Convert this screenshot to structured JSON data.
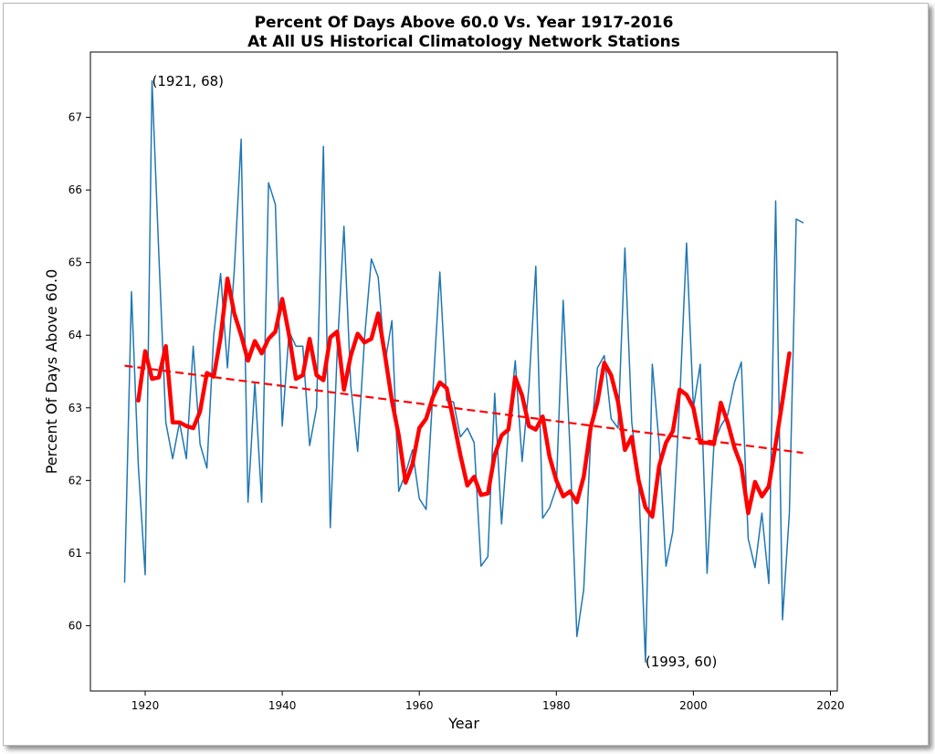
{
  "chart_data": {
    "type": "line",
    "title": "Percent Of Days Above 60.0 Vs. Year 1917-2016",
    "subtitle": "At All US Historical Climatology Network Stations",
    "xlabel": "Year",
    "ylabel": "Percent Of Days Above 60.0",
    "xlim": [
      1912,
      2021
    ],
    "ylim": [
      59.1,
      67.9
    ],
    "xticks": [
      1920,
      1940,
      1960,
      1980,
      2000,
      2020
    ],
    "yticks": [
      60,
      61,
      62,
      63,
      64,
      65,
      66,
      67
    ],
    "grid": false,
    "series": [
      {
        "color": "#1f77b4",
        "x": [
          1917,
          1918,
          1919,
          1920,
          1921,
          1922,
          1923,
          1924,
          1925,
          1926,
          1927,
          1928,
          1929,
          1930,
          1931,
          1932,
          1933,
          1934,
          1935,
          1936,
          1937,
          1938,
          1939,
          1940,
          1941,
          1942,
          1943,
          1944,
          1945,
          1946,
          1947,
          1948,
          1949,
          1950,
          1951,
          1952,
          1953,
          1954,
          1955,
          1956,
          1957,
          1958,
          1959,
          1960,
          1961,
          1962,
          1963,
          1964,
          1965,
          1966,
          1967,
          1968,
          1969,
          1970,
          1971,
          1972,
          1973,
          1974,
          1975,
          1976,
          1977,
          1978,
          1979,
          1980,
          1981,
          1982,
          1983,
          1984,
          1985,
          1986,
          1987,
          1988,
          1989,
          1990,
          1991,
          1992,
          1993,
          1994,
          1995,
          1996,
          1997,
          1998,
          1999,
          2000,
          2001,
          2002,
          2003,
          2004,
          2005,
          2006,
          2007,
          2008,
          2009,
          2010,
          2011,
          2012,
          2013,
          2014,
          2015,
          2016
        ],
        "y": [
          60.6,
          64.6,
          62.2,
          60.7,
          67.5,
          65.1,
          62.8,
          62.3,
          62.8,
          62.3,
          63.85,
          62.5,
          62.17,
          64.0,
          64.85,
          63.55,
          64.9,
          66.7,
          61.7,
          63.35,
          61.7,
          66.1,
          65.8,
          62.75,
          64.05,
          63.85,
          63.85,
          62.48,
          63.0,
          66.6,
          61.35,
          63.75,
          65.5,
          63.3,
          62.4,
          63.95,
          65.05,
          64.8,
          63.62,
          64.2,
          61.85,
          62.1,
          62.42,
          61.75,
          61.6,
          63.25,
          64.87,
          63.1,
          63.08,
          62.6,
          62.72,
          62.52,
          60.82,
          60.95,
          63.2,
          61.4,
          62.7,
          63.65,
          62.26,
          63.3,
          64.95,
          61.48,
          61.62,
          61.9,
          64.48,
          62.42,
          59.85,
          60.5,
          62.55,
          63.55,
          63.72,
          62.85,
          62.72,
          65.2,
          62.8,
          62.0,
          59.5,
          63.6,
          62.5,
          60.82,
          61.3,
          63.1,
          65.27,
          63.0,
          63.6,
          60.72,
          62.5,
          62.75,
          62.9,
          63.35,
          63.63,
          61.2,
          60.8,
          61.55,
          60.58,
          65.85,
          60.08,
          61.55,
          65.6,
          65.55
        ]
      },
      {
        "color": "#ff0000",
        "x": [
          1919,
          1920,
          1921,
          1922,
          1923,
          1924,
          1925,
          1926,
          1927,
          1928,
          1929,
          1930,
          1931,
          1932,
          1933,
          1934,
          1935,
          1936,
          1937,
          1938,
          1939,
          1940,
          1941,
          1942,
          1943,
          1944,
          1945,
          1946,
          1947,
          1948,
          1949,
          1950,
          1951,
          1952,
          1953,
          1954,
          1955,
          1956,
          1957,
          1958,
          1959,
          1960,
          1961,
          1962,
          1963,
          1964,
          1965,
          1966,
          1967,
          1968,
          1969,
          1970,
          1971,
          1972,
          1973,
          1974,
          1975,
          1976,
          1977,
          1978,
          1979,
          1980,
          1981,
          1982,
          1983,
          1984,
          1985,
          1986,
          1987,
          1988,
          1989,
          1990,
          1991,
          1992,
          1993,
          1994,
          1995,
          1996,
          1997,
          1998,
          1999,
          2000,
          2001,
          2002,
          2003,
          2004,
          2005,
          2006,
          2007,
          2008,
          2009,
          2010,
          2011,
          2012,
          2013,
          2014
        ],
        "y": [
          63.1,
          63.78,
          63.4,
          63.42,
          63.85,
          62.8,
          62.8,
          62.75,
          62.72,
          62.95,
          63.48,
          63.43,
          63.97,
          64.78,
          64.3,
          64.0,
          63.65,
          63.92,
          63.75,
          63.95,
          64.05,
          64.5,
          64.0,
          63.4,
          63.45,
          63.95,
          63.45,
          63.38,
          63.97,
          64.05,
          63.25,
          63.72,
          64.02,
          63.9,
          63.95,
          64.3,
          63.72,
          63.1,
          62.62,
          61.97,
          62.22,
          62.72,
          62.85,
          63.15,
          63.35,
          63.27,
          62.82,
          62.35,
          61.93,
          62.05,
          61.8,
          61.82,
          62.35,
          62.62,
          62.7,
          63.42,
          63.17,
          62.75,
          62.7,
          62.88,
          62.33,
          62.0,
          61.78,
          61.85,
          61.7,
          62.05,
          62.72,
          63.08,
          63.62,
          63.45,
          63.08,
          62.42,
          62.6,
          62.0,
          61.63,
          61.5,
          62.2,
          62.52,
          62.68,
          63.25,
          63.18,
          63.0,
          62.52,
          62.52,
          62.5,
          63.07,
          62.8,
          62.45,
          62.2,
          61.55,
          61.98,
          61.78,
          61.92,
          62.5,
          63.1,
          63.75
        ]
      },
      {
        "style": "dashed",
        "color": "#ff0000",
        "x": [
          1917,
          2016
        ],
        "y": [
          63.58,
          62.38
        ]
      }
    ],
    "annotations": [
      {
        "text": "(1921, 68)",
        "x": 1921,
        "y": 67.5,
        "align": "start",
        "dy": "0"
      },
      {
        "text": "(1993, 60)",
        "x": 1993,
        "y": 59.5,
        "align": "start",
        "dy": "0"
      }
    ]
  }
}
